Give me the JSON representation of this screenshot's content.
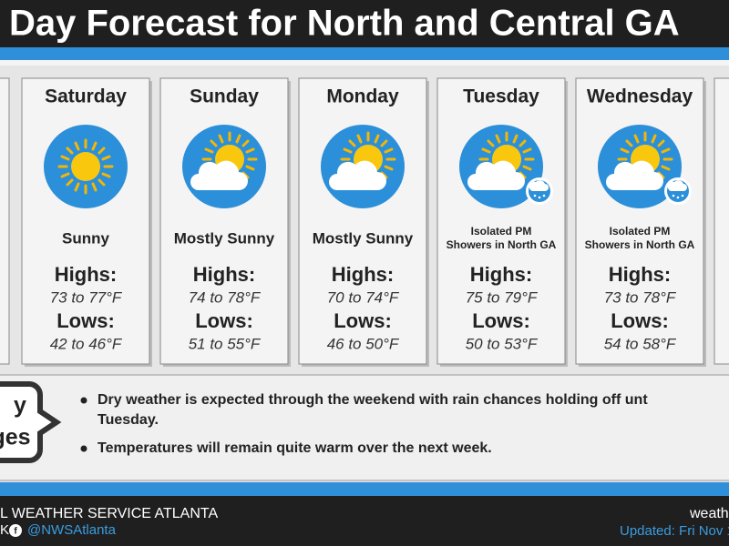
{
  "header": {
    "title": "Day Forecast for North and Central GA"
  },
  "days": [
    {
      "name": "Saturday",
      "condition": [
        "Sunny"
      ],
      "highs_label": "Highs:",
      "highs": "73 to 77°F",
      "lows_label": "Lows:",
      "lows": "42 to 46°F"
    },
    {
      "name": "Sunday",
      "condition": [
        "Mostly Sunny"
      ],
      "highs_label": "Highs:",
      "highs": "74 to 78°F",
      "lows_label": "Lows:",
      "lows": "51 to 55°F"
    },
    {
      "name": "Monday",
      "condition": [
        "Mostly Sunny"
      ],
      "highs_label": "Highs:",
      "highs": "70 to 74°F",
      "lows_label": "Lows:",
      "lows": "46 to 50°F"
    },
    {
      "name": "Tuesday",
      "condition": [
        "Isolated PM",
        "Showers in North GA"
      ],
      "highs_label": "Highs:",
      "highs": "75 to 79°F",
      "lows_label": "Lows:",
      "lows": "50 to 53°F"
    },
    {
      "name": "Wednesday",
      "condition": [
        "Isolated PM",
        "Showers in North GA"
      ],
      "highs_label": "Highs:",
      "highs": "73 to 78°F",
      "lows_label": "Lows:",
      "lows": "54 to 58°F"
    }
  ],
  "key_messages": {
    "badge": [
      "y",
      "ges"
    ],
    "bullets": [
      [
        "Dry weather is expected through the weekend with rain chances holding off unt",
        "Tuesday."
      ],
      [
        "Temperatures will remain quite warm over the next week."
      ]
    ]
  },
  "footer": {
    "left": [
      "L WEATHER SERVICE ATLANTA",
      "K",
      "@NWSAtlanta"
    ],
    "right": [
      "weath",
      "Updated: Fri Nov 1"
    ]
  }
}
